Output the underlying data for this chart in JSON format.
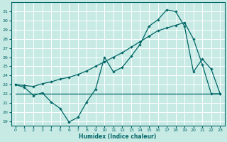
{
  "bg_color": "#c8eae5",
  "grid_color": "#ffffff",
  "line_color": "#006666",
  "xlabel": "Humidex (Indice chaleur)",
  "ylim": [
    18.5,
    32
  ],
  "xlim": [
    -0.5,
    23.5
  ],
  "yticks": [
    19,
    20,
    21,
    22,
    23,
    24,
    25,
    26,
    27,
    28,
    29,
    30,
    31
  ],
  "xticks": [
    0,
    1,
    2,
    3,
    4,
    5,
    6,
    7,
    8,
    9,
    10,
    11,
    12,
    13,
    14,
    15,
    16,
    17,
    18,
    19,
    20,
    21,
    22,
    23
  ],
  "line1_x": [
    0,
    1,
    2,
    3,
    4,
    5,
    6,
    7,
    8,
    9,
    10,
    11,
    12,
    13,
    14,
    15,
    16,
    17,
    18,
    19,
    20,
    21,
    22,
    23
  ],
  "line1_y": [
    23.0,
    22.7,
    21.8,
    22.1,
    21.1,
    20.4,
    18.9,
    19.4,
    21.1,
    22.5,
    26.0,
    24.4,
    24.9,
    26.1,
    27.4,
    29.4,
    30.1,
    31.2,
    31.0,
    29.4,
    24.4,
    25.8,
    24.7,
    22.0
  ],
  "line2_x": [
    0,
    1,
    2,
    3,
    4,
    5,
    6,
    7,
    8,
    9,
    10,
    11,
    12,
    13,
    14,
    15,
    16,
    17,
    18,
    19,
    20,
    21,
    22,
    23
  ],
  "line2_y": [
    23.0,
    22.9,
    22.8,
    23.1,
    23.3,
    23.6,
    23.8,
    24.1,
    24.5,
    25.0,
    25.5,
    26.0,
    26.5,
    27.1,
    27.7,
    28.3,
    28.9,
    29.2,
    29.5,
    29.8,
    28.0,
    25.2,
    22.0,
    22.0
  ],
  "line3_x": [
    0,
    1,
    2,
    3,
    4,
    5,
    6,
    7,
    8,
    9,
    10,
    11,
    12,
    13,
    14,
    15,
    16,
    17,
    18,
    19,
    20,
    21,
    22,
    23
  ],
  "line3_y": [
    22.0,
    22.0,
    22.0,
    22.0,
    22.0,
    22.0,
    22.0,
    22.0,
    22.0,
    22.0,
    22.0,
    22.0,
    22.0,
    22.0,
    22.0,
    22.0,
    22.0,
    22.0,
    22.0,
    22.0,
    22.0,
    22.0,
    22.0,
    22.0
  ]
}
